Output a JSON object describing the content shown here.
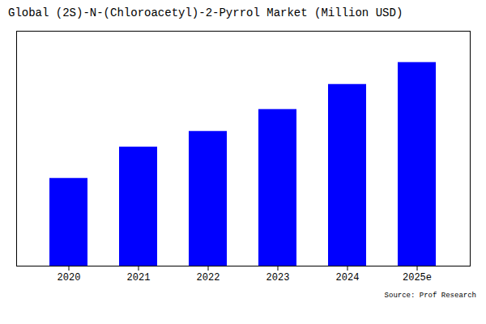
{
  "chart_data": {
    "type": "bar",
    "title": "Global (2S)-N-(Chloroacetyl)-2-Pyrrol Market (Million USD)",
    "categories": [
      "2020",
      "2021",
      "2022",
      "2023",
      "2024",
      "2025e"
    ],
    "values": [
      28,
      38,
      43,
      50,
      58,
      65
    ],
    "color": "#0000FF",
    "ylim": [
      0,
      75
    ],
    "grid": false,
    "tick_labels": "x",
    "annotations": [
      "Source: Prof Research"
    ]
  }
}
